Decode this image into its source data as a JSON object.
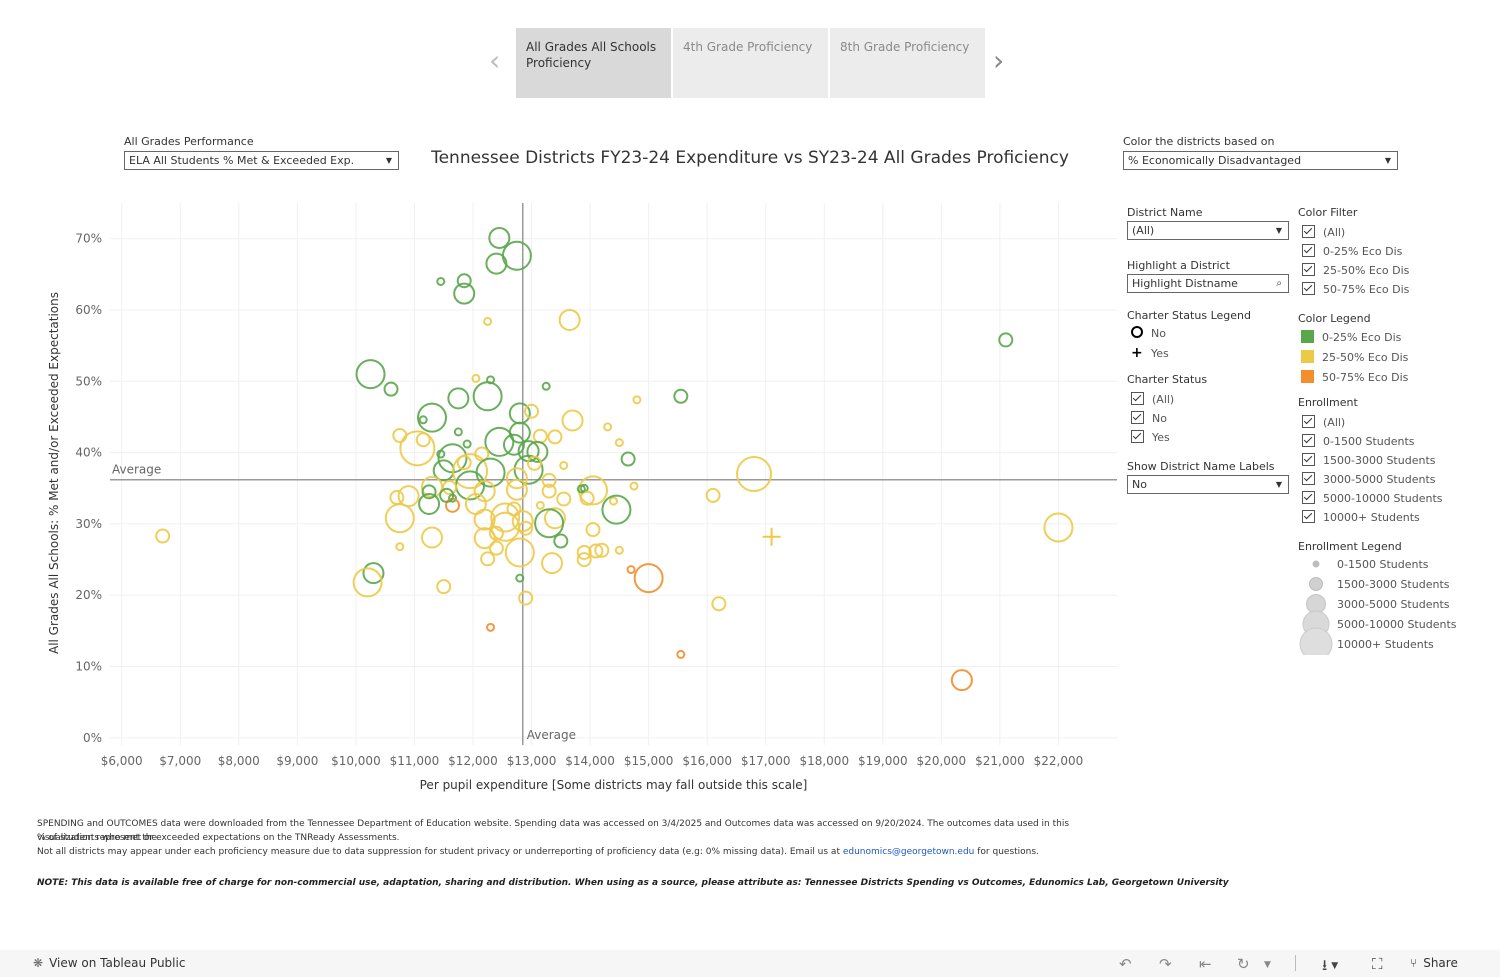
{
  "story": {
    "tabs": [
      {
        "label": "All Grades All Schools Proficiency",
        "active": true
      },
      {
        "label": "4th Grade Proficiency",
        "active": false
      },
      {
        "label": "8th Grade Proficiency",
        "active": false
      }
    ],
    "prev_icon": "chevron-left-icon",
    "next_icon": "chevron-right-icon"
  },
  "performance": {
    "label": "All Grades Performance",
    "value": "ELA All Students % Met & Exceeded Exp."
  },
  "color_by": {
    "label": "Color the districts based on",
    "value": "% Economically Disadvantaged"
  },
  "filters": {
    "district_name": {
      "label": "District Name",
      "value": "(All)"
    },
    "highlight": {
      "label": "Highlight a District",
      "placeholder": "Highlight Distname"
    },
    "charter_legend": {
      "label": "Charter Status Legend",
      "no": "No",
      "yes": "Yes"
    },
    "charter_status": {
      "label": "Charter Status",
      "items": [
        "(All)",
        "No",
        "Yes"
      ]
    },
    "show_labels": {
      "label": "Show District Name Labels",
      "value": "No"
    },
    "color_filter": {
      "label": "Color Filter",
      "items": [
        "(All)",
        "0-25% Eco Dis",
        "25-50% Eco Dis",
        "50-75% Eco Dis"
      ]
    },
    "color_legend": {
      "label": "Color Legend",
      "items": [
        {
          "label": "0-25% Eco Dis",
          "color": "#5aa64b"
        },
        {
          "label": "25-50% Eco Dis",
          "color": "#edc948"
        },
        {
          "label": "50-75% Eco Dis",
          "color": "#f28e2b"
        }
      ]
    },
    "enrollment": {
      "label": "Enrollment",
      "items": [
        "(All)",
        "0-1500 Students",
        "1500-3000 Students",
        "3000-5000 Students",
        "5000-10000 Students",
        "10000+ Students"
      ]
    },
    "enrollment_legend": {
      "label": "Enrollment Legend",
      "items": [
        "0-1500 Students",
        "1500-3000 Students",
        "3000-5000 Students",
        "5000-10000 Students",
        "10000+ Students"
      ]
    }
  },
  "footer": {
    "line1": "SPENDING and OUTCOMES data were downloaded from the Tennessee Department of Education website. Spending data was accessed on 3/4/2025 and Outcomes data was accessed on 9/20/2024. The outcomes data used in this visualization represent the",
    "line2": "% of students who met or exceeded expectations on the TNReady Assessments.",
    "line3_pre": "Not all districts may appear under each proficiency measure due to data suppression for student privacy or underreporting of proficiency data (e.g: 0% missing data). Email us at ",
    "email": "edunomics@georgetown.edu",
    "line3_post": " for questions.",
    "note": "NOTE: This data is available free of charge for non-commercial use, adaptation, sharing and distribution. When using as a source, please attribute as: Tennessee Districts Spending vs Outcomes, Edunomics Lab, Georgetown University"
  },
  "toolbar": {
    "view_label": "View on Tableau Public",
    "share_label": "Share"
  },
  "chart_data": {
    "type": "scatter",
    "title": "Tennessee Districts FY23-24 Expenditure vs SY23-24 All Grades Proficiency",
    "xlabel": "Per pupil expenditure [Some districts may fall outside this scale]",
    "ylabel": "All Grades All Schools: % Met and/or Exceeded Expectations",
    "xlim": [
      5800,
      23000
    ],
    "ylim": [
      -1,
      75
    ],
    "x_ticks": [
      6000,
      7000,
      8000,
      9000,
      10000,
      11000,
      12000,
      13000,
      14000,
      15000,
      16000,
      17000,
      18000,
      19000,
      20000,
      21000,
      22000
    ],
    "x_tick_labels": [
      "$6,000",
      "$7,000",
      "$8,000",
      "$9,000",
      "$10,000",
      "$11,000",
      "$12,000",
      "$13,000",
      "$14,000",
      "$15,000",
      "$16,000",
      "$17,000",
      "$18,000",
      "$19,000",
      "$20,000",
      "$21,000",
      "$22,000"
    ],
    "y_ticks": [
      0,
      10,
      20,
      30,
      40,
      50,
      60,
      70
    ],
    "y_tick_labels": [
      "0%",
      "10%",
      "20%",
      "30%",
      "40%",
      "50%",
      "60%",
      "70%"
    ],
    "average_x": 12850,
    "average_y": 36.2,
    "average_label": "Average",
    "grid": true,
    "size_classes": [
      "0-1500 Students",
      "1500-3000 Students",
      "3000-5000 Students",
      "5000-10000 Students",
      "10000+ Students"
    ],
    "color_classes": [
      "0-25% Eco Dis",
      "25-50% Eco Dis",
      "50-75% Eco Dis"
    ],
    "points": [
      {
        "x": 12450,
        "y": 70.1,
        "c": 0,
        "s": 2
      },
      {
        "x": 12750,
        "y": 67.6,
        "c": 0,
        "s": 3
      },
      {
        "x": 12400,
        "y": 66.5,
        "c": 0,
        "s": 2
      },
      {
        "x": 11850,
        "y": 64.1,
        "c": 0,
        "s": 1
      },
      {
        "x": 11450,
        "y": 64.0,
        "c": 0,
        "s": 0
      },
      {
        "x": 11850,
        "y": 62.3,
        "c": 0,
        "s": 2
      },
      {
        "x": 13650,
        "y": 58.6,
        "c": 1,
        "s": 2
      },
      {
        "x": 12250,
        "y": 58.4,
        "c": 1,
        "s": 0
      },
      {
        "x": 21100,
        "y": 55.8,
        "c": 0,
        "s": 1
      },
      {
        "x": 10250,
        "y": 51.0,
        "c": 0,
        "s": 3
      },
      {
        "x": 10600,
        "y": 48.9,
        "c": 0,
        "s": 1
      },
      {
        "x": 13250,
        "y": 49.3,
        "c": 0,
        "s": 0
      },
      {
        "x": 12050,
        "y": 50.4,
        "c": 1,
        "s": 0
      },
      {
        "x": 12300,
        "y": 50.2,
        "c": 0,
        "s": 0
      },
      {
        "x": 12250,
        "y": 47.9,
        "c": 0,
        "s": 3
      },
      {
        "x": 11750,
        "y": 47.6,
        "c": 0,
        "s": 2
      },
      {
        "x": 15550,
        "y": 47.9,
        "c": 0,
        "s": 1
      },
      {
        "x": 14800,
        "y": 47.4,
        "c": 1,
        "s": 0
      },
      {
        "x": 12800,
        "y": 45.5,
        "c": 0,
        "s": 2
      },
      {
        "x": 13000,
        "y": 45.8,
        "c": 1,
        "s": 1
      },
      {
        "x": 13700,
        "y": 44.5,
        "c": 1,
        "s": 2
      },
      {
        "x": 11300,
        "y": 44.9,
        "c": 0,
        "s": 3
      },
      {
        "x": 11150,
        "y": 44.6,
        "c": 0,
        "s": 0
      },
      {
        "x": 14300,
        "y": 43.6,
        "c": 1,
        "s": 0
      },
      {
        "x": 12800,
        "y": 42.8,
        "c": 0,
        "s": 2
      },
      {
        "x": 11750,
        "y": 42.9,
        "c": 0,
        "s": 0
      },
      {
        "x": 10750,
        "y": 42.4,
        "c": 1,
        "s": 1
      },
      {
        "x": 13400,
        "y": 42.2,
        "c": 1,
        "s": 1
      },
      {
        "x": 13150,
        "y": 42.3,
        "c": 1,
        "s": 1
      },
      {
        "x": 12450,
        "y": 41.5,
        "c": 0,
        "s": 3
      },
      {
        "x": 12700,
        "y": 41.1,
        "c": 0,
        "s": 2
      },
      {
        "x": 11900,
        "y": 41.2,
        "c": 0,
        "s": 0
      },
      {
        "x": 12950,
        "y": 40.2,
        "c": 0,
        "s": 2
      },
      {
        "x": 14500,
        "y": 41.4,
        "c": 1,
        "s": 0
      },
      {
        "x": 11050,
        "y": 40.6,
        "c": 1,
        "s": 4
      },
      {
        "x": 11450,
        "y": 39.8,
        "c": 0,
        "s": 0
      },
      {
        "x": 11650,
        "y": 39.2,
        "c": 0,
        "s": 3
      },
      {
        "x": 12150,
        "y": 39.8,
        "c": 1,
        "s": 1
      },
      {
        "x": 11850,
        "y": 38.6,
        "c": 1,
        "s": 1
      },
      {
        "x": 14650,
        "y": 39.1,
        "c": 0,
        "s": 1
      },
      {
        "x": 13550,
        "y": 38.2,
        "c": 1,
        "s": 0
      },
      {
        "x": 12950,
        "y": 37.6,
        "c": 0,
        "s": 3
      },
      {
        "x": 11500,
        "y": 37.5,
        "c": 0,
        "s": 2
      },
      {
        "x": 11950,
        "y": 37.4,
        "c": 1,
        "s": 4
      },
      {
        "x": 12300,
        "y": 37.2,
        "c": 0,
        "s": 3
      },
      {
        "x": 16800,
        "y": 37.0,
        "c": 1,
        "s": 4
      },
      {
        "x": 12750,
        "y": 36.4,
        "c": 1,
        "s": 2
      },
      {
        "x": 13300,
        "y": 36.1,
        "c": 1,
        "s": 1
      },
      {
        "x": 11300,
        "y": 35.2,
        "c": 1,
        "s": 2
      },
      {
        "x": 11950,
        "y": 35.4,
        "c": 0,
        "s": 3
      },
      {
        "x": 11600,
        "y": 35.1,
        "c": 1,
        "s": 1
      },
      {
        "x": 13900,
        "y": 35.0,
        "c": 0,
        "s": 0
      },
      {
        "x": 14050,
        "y": 34.7,
        "c": 1,
        "s": 3
      },
      {
        "x": 14750,
        "y": 35.3,
        "c": 1,
        "s": 0
      },
      {
        "x": 11250,
        "y": 34.5,
        "c": 0,
        "s": 1
      },
      {
        "x": 12200,
        "y": 34.6,
        "c": 1,
        "s": 2
      },
      {
        "x": 12750,
        "y": 34.8,
        "c": 1,
        "s": 2
      },
      {
        "x": 13300,
        "y": 34.6,
        "c": 1,
        "s": 1
      },
      {
        "x": 10900,
        "y": 33.9,
        "c": 1,
        "s": 2
      },
      {
        "x": 10700,
        "y": 33.7,
        "c": 1,
        "s": 1
      },
      {
        "x": 13550,
        "y": 33.5,
        "c": 1,
        "s": 1
      },
      {
        "x": 13950,
        "y": 33.6,
        "c": 1,
        "s": 1
      },
      {
        "x": 14400,
        "y": 33.2,
        "c": 1,
        "s": 0
      },
      {
        "x": 16100,
        "y": 34.0,
        "c": 1,
        "s": 1
      },
      {
        "x": 11650,
        "y": 33.6,
        "c": 0,
        "s": 0
      },
      {
        "x": 11250,
        "y": 32.8,
        "c": 0,
        "s": 2
      },
      {
        "x": 11650,
        "y": 32.6,
        "c": 2,
        "s": 1
      },
      {
        "x": 12050,
        "y": 32.8,
        "c": 1,
        "s": 2
      },
      {
        "x": 12700,
        "y": 32.1,
        "c": 1,
        "s": 1
      },
      {
        "x": 13150,
        "y": 32.6,
        "c": 1,
        "s": 0
      },
      {
        "x": 14450,
        "y": 32.0,
        "c": 0,
        "s": 3
      },
      {
        "x": 10750,
        "y": 30.8,
        "c": 1,
        "s": 3
      },
      {
        "x": 12550,
        "y": 30.9,
        "c": 1,
        "s": 3
      },
      {
        "x": 12200,
        "y": 30.6,
        "c": 1,
        "s": 2
      },
      {
        "x": 12850,
        "y": 30.4,
        "c": 1,
        "s": 2
      },
      {
        "x": 13400,
        "y": 30.8,
        "c": 1,
        "s": 2
      },
      {
        "x": 13300,
        "y": 30.1,
        "c": 0,
        "s": 3
      },
      {
        "x": 12550,
        "y": 29.6,
        "c": 1,
        "s": 3
      },
      {
        "x": 12900,
        "y": 29.4,
        "c": 1,
        "s": 1
      },
      {
        "x": 6700,
        "y": 28.3,
        "c": 1,
        "s": 1
      },
      {
        "x": 11300,
        "y": 28.1,
        "c": 1,
        "s": 2
      },
      {
        "x": 12200,
        "y": 28.0,
        "c": 1,
        "s": 2
      },
      {
        "x": 13500,
        "y": 27.6,
        "c": 0,
        "s": 1
      },
      {
        "x": 14050,
        "y": 29.2,
        "c": 1,
        "s": 1
      },
      {
        "x": 12400,
        "y": 28.7,
        "c": 1,
        "s": 1
      },
      {
        "x": 22000,
        "y": 29.5,
        "c": 1,
        "s": 3
      },
      {
        "x": 17100,
        "y": 28.2,
        "c": 1,
        "s": -1
      },
      {
        "x": 10750,
        "y": 26.8,
        "c": 1,
        "s": 0
      },
      {
        "x": 12400,
        "y": 26.6,
        "c": 1,
        "s": 1
      },
      {
        "x": 12800,
        "y": 26.0,
        "c": 1,
        "s": 3
      },
      {
        "x": 14100,
        "y": 26.2,
        "c": 1,
        "s": 1
      },
      {
        "x": 14200,
        "y": 26.3,
        "c": 1,
        "s": 1
      },
      {
        "x": 14500,
        "y": 26.3,
        "c": 1,
        "s": 0
      },
      {
        "x": 13900,
        "y": 26.0,
        "c": 1,
        "s": 1
      },
      {
        "x": 12250,
        "y": 25.1,
        "c": 1,
        "s": 1
      },
      {
        "x": 13900,
        "y": 25.0,
        "c": 1,
        "s": 1
      },
      {
        "x": 13350,
        "y": 24.5,
        "c": 1,
        "s": 2
      },
      {
        "x": 14700,
        "y": 23.6,
        "c": 2,
        "s": 0
      },
      {
        "x": 15000,
        "y": 22.4,
        "c": 2,
        "s": 3
      },
      {
        "x": 10300,
        "y": 23.1,
        "c": 0,
        "s": 2
      },
      {
        "x": 10200,
        "y": 21.8,
        "c": 1,
        "s": 3
      },
      {
        "x": 12800,
        "y": 22.4,
        "c": 0,
        "s": 0
      },
      {
        "x": 11500,
        "y": 21.2,
        "c": 1,
        "s": 1
      },
      {
        "x": 12900,
        "y": 19.6,
        "c": 1,
        "s": 1
      },
      {
        "x": 16200,
        "y": 18.8,
        "c": 1,
        "s": 1
      },
      {
        "x": 12300,
        "y": 15.5,
        "c": 2,
        "s": 0
      },
      {
        "x": 15550,
        "y": 11.7,
        "c": 2,
        "s": 0
      },
      {
        "x": 20350,
        "y": 8.1,
        "c": 2,
        "s": 2
      },
      {
        "x": 13850,
        "y": 34.9,
        "c": 0,
        "s": 0
      },
      {
        "x": 13100,
        "y": 40.1,
        "c": 0,
        "s": 2
      },
      {
        "x": 11550,
        "y": 34.0,
        "c": 0,
        "s": 1
      },
      {
        "x": 13050,
        "y": 38.5,
        "c": 1,
        "s": 1
      },
      {
        "x": 11150,
        "y": 41.8,
        "c": 1,
        "s": 1
      }
    ]
  }
}
